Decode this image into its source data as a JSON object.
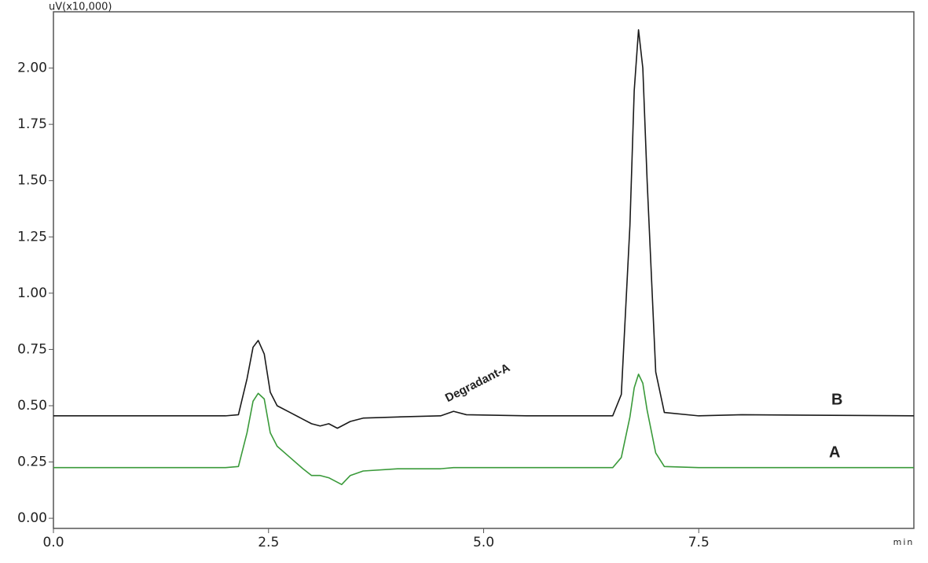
{
  "chart_data": {
    "type": "line",
    "y_label": "uV(x10,000)",
    "x_label": "min",
    "annotations": [
      "Degradant-A",
      "B",
      "A"
    ],
    "x": [
      0,
      2.0,
      2.15,
      2.25,
      2.32,
      2.38,
      2.45,
      2.52,
      2.6,
      2.75,
      2.9,
      3.0,
      3.1,
      3.2,
      3.3,
      3.35,
      3.45,
      3.6,
      4.0,
      4.5,
      4.65,
      4.8,
      5.5,
      6.5,
      6.6,
      6.7,
      6.75,
      6.8,
      6.85,
      6.9,
      7.0,
      7.1,
      7.5,
      8.0,
      10
    ],
    "series": [
      {
        "name": "B",
        "color": "#1a1a1a",
        "values": [
          0.455,
          0.455,
          0.46,
          0.62,
          0.76,
          0.79,
          0.73,
          0.56,
          0.5,
          0.47,
          0.44,
          0.42,
          0.41,
          0.42,
          0.4,
          0.41,
          0.43,
          0.445,
          0.45,
          0.455,
          0.475,
          0.46,
          0.455,
          0.455,
          0.55,
          1.3,
          1.9,
          2.17,
          2.0,
          1.5,
          0.65,
          0.47,
          0.455,
          0.46,
          0.455
        ]
      },
      {
        "name": "A",
        "color": "#3a9a3a",
        "values": [
          0.225,
          0.225,
          0.23,
          0.38,
          0.52,
          0.555,
          0.53,
          0.38,
          0.32,
          0.27,
          0.22,
          0.19,
          0.19,
          0.18,
          0.16,
          0.15,
          0.19,
          0.21,
          0.22,
          0.22,
          0.225,
          0.225,
          0.225,
          0.225,
          0.27,
          0.45,
          0.58,
          0.64,
          0.6,
          0.48,
          0.29,
          0.23,
          0.225,
          0.225,
          0.225
        ]
      }
    ],
    "xlim": [
      0,
      10
    ],
    "ylim": [
      -0.045,
      2.25
    ],
    "xticks": [
      {
        "value": 0,
        "label": "0.0"
      },
      2.5,
      {
        "value": 5,
        "label": "5.0"
      },
      7.5
    ],
    "yticks": [
      {
        "value": 0,
        "label": "0.00"
      },
      {
        "value": 0.25,
        "label": "0.25"
      },
      {
        "value": 0.5,
        "label": "0.50"
      },
      {
        "value": 0.75,
        "label": "0.75"
      },
      {
        "value": 1,
        "label": "1.00"
      },
      {
        "value": 1.25,
        "label": "1.25"
      },
      {
        "value": 1.5,
        "label": "1.50"
      },
      {
        "value": 1.75,
        "label": "1.75"
      },
      {
        "value": 2,
        "label": "2.00"
      }
    ]
  }
}
